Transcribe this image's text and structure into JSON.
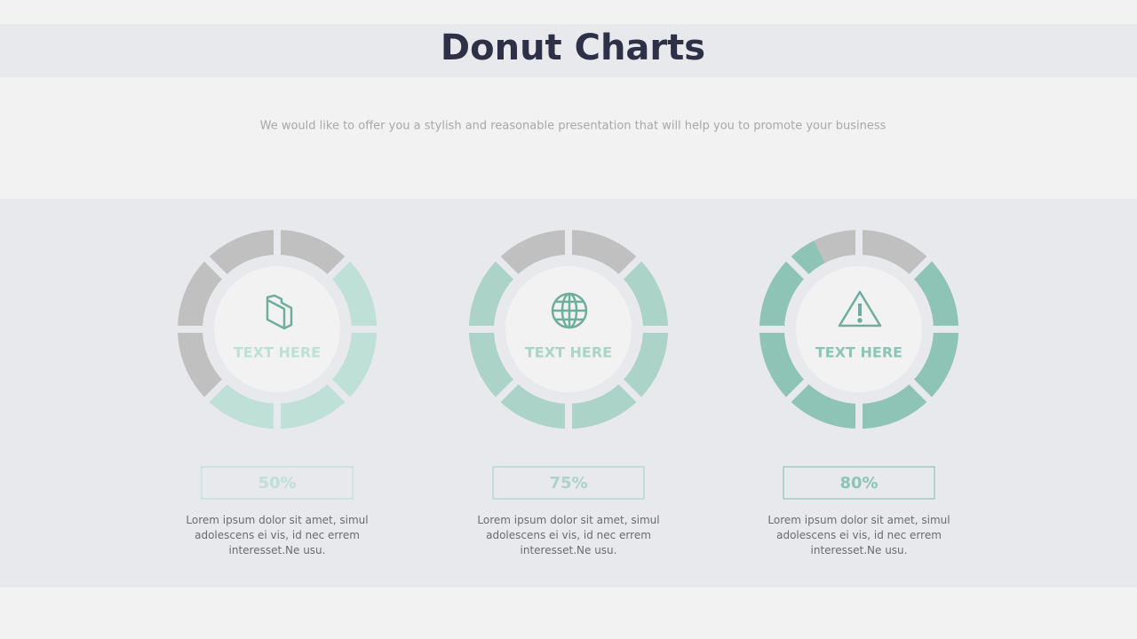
{
  "title": "Donut Charts",
  "subtitle": "We would like to offer you a stylish and reasonable presentation that will help you to promote your business",
  "chart_data": [
    {
      "type": "donut",
      "center_label": "TEXT HERE",
      "values": [
        50
      ],
      "value_labels": [
        "50%"
      ],
      "color": "#bfe0d6",
      "description": "Lorem ipsum dolor sit amet, simul adolescens ei vis, id nec errem interesset.Ne usu."
    },
    {
      "type": "donut",
      "center_label": "TEXT HERE",
      "values": [
        75
      ],
      "value_labels": [
        "75%"
      ],
      "color": "#acd3c7",
      "description": "Lorem ipsum dolor sit amet, simul adolescens ei vis, id nec errem interesset.Ne usu."
    },
    {
      "type": "donut",
      "center_label": "TEXT HERE",
      "values": [
        80
      ],
      "value_labels": [
        "80%"
      ],
      "color": "#8ec4b5",
      "description": "Lorem ipsum dolor sit amet, simul adolescens ei vis, id nec errem interesset.Ne usu."
    }
  ]
}
